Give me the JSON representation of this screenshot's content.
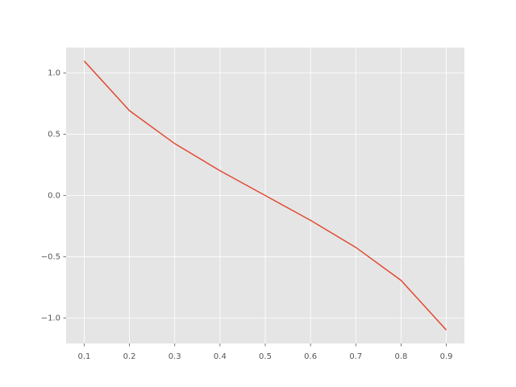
{
  "chart_data": {
    "type": "line",
    "x": [
      0.1,
      0.2,
      0.3,
      0.4,
      0.5,
      0.6,
      0.7,
      0.8,
      0.9
    ],
    "series": [
      {
        "color": "#E24A33",
        "values": [
          1.0986,
          0.6931,
          0.4236,
          0.2027,
          0,
          -0.2027,
          -0.4236,
          -0.6931,
          -1.0986
        ]
      }
    ],
    "xlim": [
      0.06,
      0.94
    ],
    "ylim": [
      -1.2085,
      1.2085
    ],
    "xticks": [
      0.1,
      0.2,
      0.3,
      0.4,
      0.5,
      0.6,
      0.7,
      0.8,
      0.9
    ],
    "yticks": [
      {
        "value": -1,
        "label": "−1.0"
      },
      {
        "value": -0.5,
        "label": "−0.5"
      },
      {
        "value": 0,
        "label": "0.0"
      },
      0.5,
      {
        "value": 1,
        "label": "1.0"
      }
    ],
    "grid": true
  }
}
